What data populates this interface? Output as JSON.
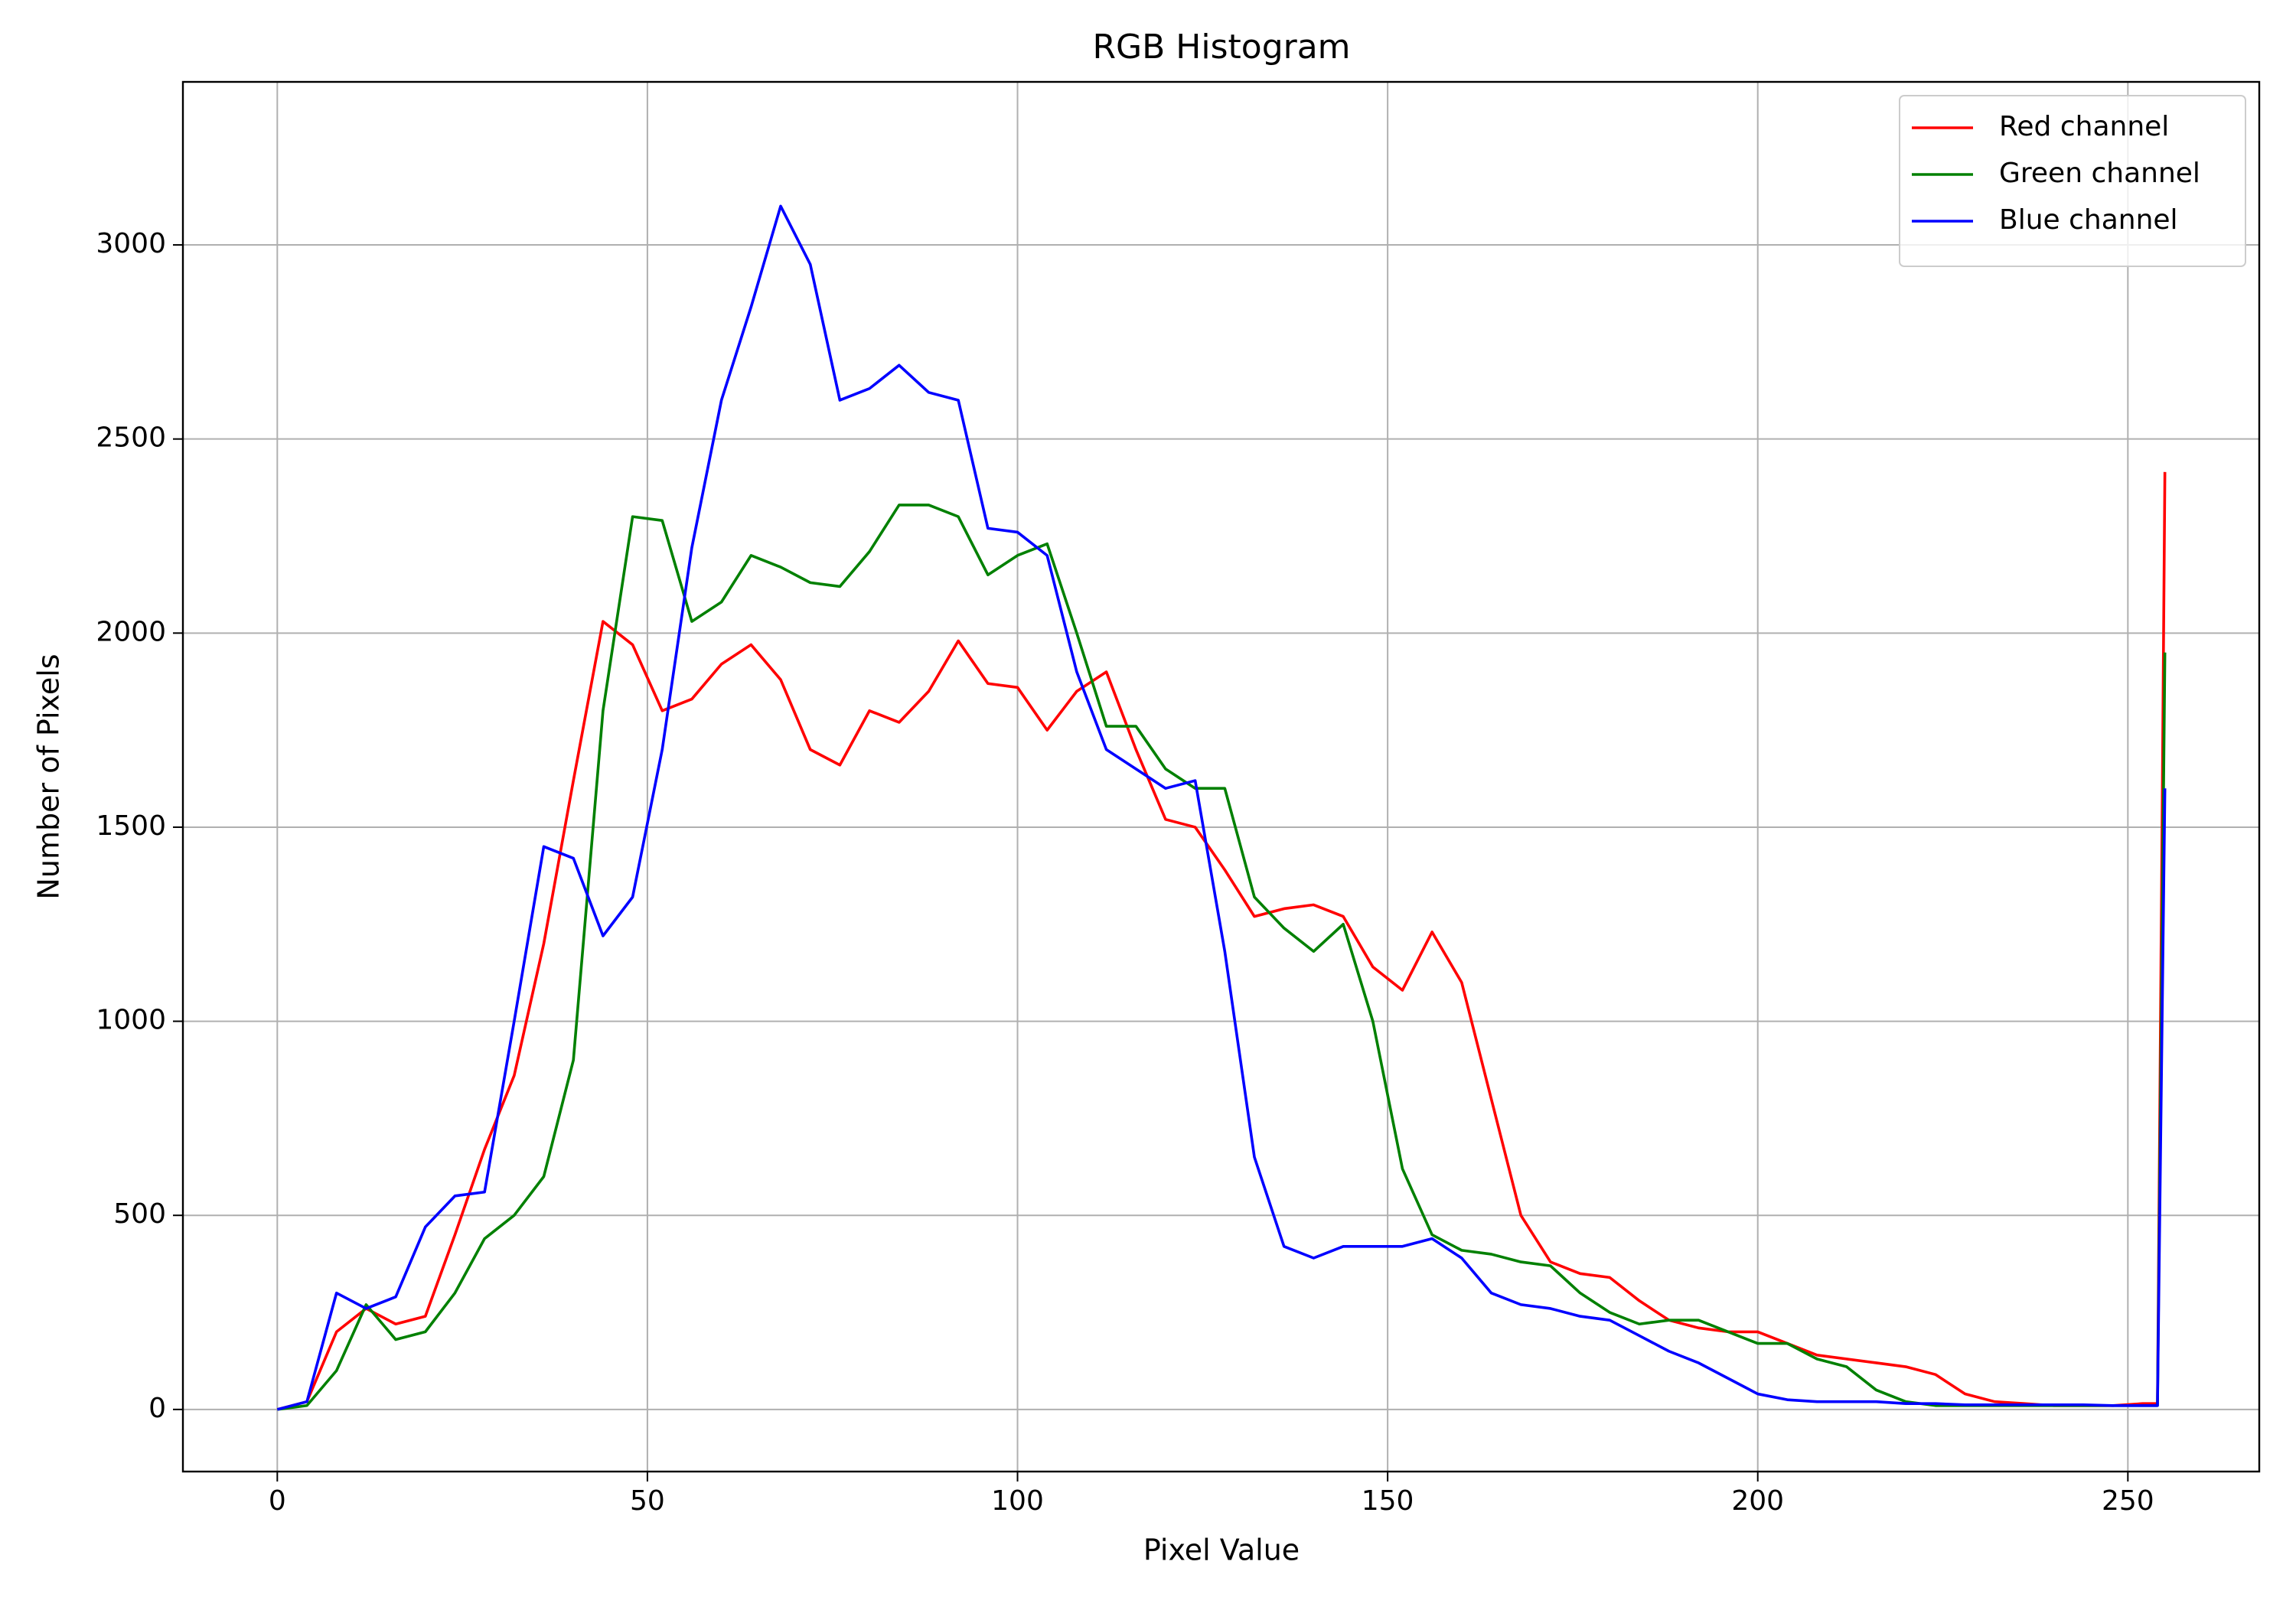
{
  "chart_data": {
    "type": "line",
    "title": "RGB Histogram",
    "xlabel": "Pixel Value",
    "ylabel": "Number of Pixels",
    "x": [
      0,
      4,
      8,
      12,
      16,
      20,
      24,
      28,
      32,
      36,
      40,
      44,
      48,
      52,
      56,
      60,
      64,
      68,
      72,
      76,
      80,
      84,
      88,
      92,
      96,
      100,
      104,
      108,
      112,
      116,
      120,
      124,
      128,
      132,
      136,
      140,
      144,
      148,
      152,
      156,
      160,
      164,
      168,
      172,
      176,
      180,
      184,
      188,
      192,
      196,
      200,
      204,
      208,
      212,
      216,
      220,
      224,
      228,
      232,
      236,
      240,
      244,
      248,
      252,
      254,
      255
    ],
    "series": [
      {
        "name": "Red channel",
        "color": "#ff0000",
        "values": [
          0,
          20,
          200,
          260,
          220,
          240,
          450,
          670,
          860,
          1200,
          1620,
          2030,
          1970,
          1800,
          1830,
          1920,
          1970,
          1880,
          1700,
          1660,
          1800,
          1770,
          1850,
          1980,
          1870,
          1860,
          1750,
          1850,
          1900,
          1700,
          1520,
          1500,
          1390,
          1270,
          1290,
          1300,
          1270,
          1140,
          1080,
          1230,
          1100,
          800,
          500,
          380,
          350,
          340,
          280,
          230,
          210,
          200,
          200,
          170,
          140,
          130,
          120,
          110,
          90,
          40,
          20,
          15,
          10,
          10,
          10,
          15,
          15,
          2415
        ]
      },
      {
        "name": "Green channel",
        "color": "#008000",
        "values": [
          0,
          10,
          100,
          270,
          180,
          200,
          300,
          440,
          500,
          600,
          900,
          1800,
          2300,
          2290,
          2030,
          2080,
          2200,
          2170,
          2130,
          2120,
          2210,
          2330,
          2330,
          2300,
          2150,
          2200,
          2230,
          2000,
          1760,
          1760,
          1650,
          1600,
          1600,
          1320,
          1240,
          1180,
          1250,
          1000,
          620,
          450,
          410,
          400,
          380,
          370,
          300,
          250,
          220,
          230,
          230,
          200,
          170,
          170,
          130,
          110,
          50,
          20,
          10,
          10,
          10,
          10,
          10,
          10,
          10,
          10,
          10,
          1950
        ]
      },
      {
        "name": "Blue channel",
        "color": "#0000ff",
        "values": [
          0,
          20,
          300,
          260,
          290,
          470,
          550,
          560,
          1000,
          1450,
          1420,
          1220,
          1320,
          1700,
          2220,
          2600,
          2840,
          3100,
          2950,
          2600,
          2630,
          2690,
          2620,
          2600,
          2270,
          2260,
          2200,
          1900,
          1700,
          1650,
          1600,
          1620,
          1180,
          650,
          420,
          390,
          420,
          420,
          420,
          440,
          390,
          300,
          270,
          260,
          240,
          230,
          190,
          150,
          120,
          80,
          40,
          25,
          20,
          20,
          20,
          15,
          15,
          12,
          12,
          12,
          12,
          12,
          10,
          10,
          10,
          1600
        ]
      }
    ],
    "xlim": [
      -12.75,
      267.75
    ],
    "xticks": [
      0,
      50,
      100,
      150,
      200,
      250
    ],
    "ylim": [
      -160,
      3420
    ],
    "yticks": [
      0,
      500,
      1000,
      1500,
      2000,
      2500,
      3000
    ],
    "grid": true,
    "legend": "upper right"
  }
}
